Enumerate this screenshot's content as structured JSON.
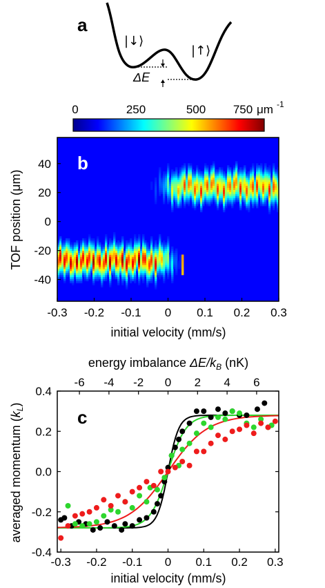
{
  "panel_a": {
    "letter": "a",
    "label_left": "|↓⟩",
    "label_right": "|↑⟩",
    "delta_label": "ΔE"
  },
  "colorbar": {
    "ticks": [
      "0",
      "250",
      "500",
      "750"
    ],
    "unit": "μm",
    "unit_exp": "-1",
    "colors": [
      "#00008f",
      "#0000ff",
      "#00ffff",
      "#ffff00",
      "#ff0000",
      "#800000"
    ]
  },
  "panel_b": {
    "letter": "b",
    "ylabel": "TOF position (μm)",
    "yticks": [
      "40",
      "20",
      "0",
      "-20",
      "-40"
    ],
    "xticks": [
      "-0.3",
      "-0.2",
      "-0.1",
      "0",
      "0.1",
      "0.2",
      "0.3"
    ],
    "xlabel": "initial velocity (mm/s)"
  },
  "panel_c": {
    "letter": "c",
    "top_label_prefix": "energy imbalance ",
    "top_label_var": "ΔE/k",
    "top_label_sub": "B",
    "top_label_suffix": " (nK)",
    "top_ticks": [
      "-6",
      "-4",
      "-2",
      "0",
      "2",
      "4",
      "6"
    ],
    "ylabel_prefix": "averaged momentum (",
    "ylabel_var": "k",
    "ylabel_sub": "L",
    "ylabel_suffix": ")",
    "yticks": [
      "0.4",
      "0.2",
      "0.0",
      "-0.2",
      "-0.4"
    ],
    "xticks": [
      "-0.3",
      "-0.2",
      "-0.1",
      "0",
      "0.1",
      "0.2",
      "0.3"
    ],
    "xlabel": "initial velocity (mm/s)"
  },
  "chart_data": [
    {
      "type": "heatmap",
      "xlabel": "initial velocity (mm/s)",
      "ylabel": "TOF position (μm)",
      "xlim": [
        -0.3,
        0.3
      ],
      "ylim": [
        -55,
        58
      ],
      "colorbar_range": [
        0,
        800
      ],
      "branches": [
        {
          "x_range": [
            -0.3,
            0.05
          ],
          "center": -27,
          "peak": 700
        },
        {
          "x_range": [
            0.0,
            0.3
          ],
          "center": 24,
          "peak": 600
        }
      ]
    },
    {
      "type": "scatter",
      "xlabel": "initial velocity (mm/s)",
      "ylabel": "averaged momentum (kL)",
      "xlim": [
        -0.31,
        0.31
      ],
      "ylim": [
        -0.4,
        0.4
      ],
      "top_axis_range": [
        -7.5,
        7.5
      ],
      "series": [
        {
          "color": "#000000",
          "x": [
            -0.3,
            -0.29,
            -0.27,
            -0.25,
            -0.23,
            -0.21,
            -0.19,
            -0.17,
            -0.15,
            -0.13,
            -0.12,
            -0.1,
            -0.08,
            -0.06,
            -0.04,
            -0.03,
            -0.02,
            -0.01,
            0.0,
            0.01,
            0.02,
            0.03,
            0.04,
            0.06,
            0.08,
            0.1,
            0.12,
            0.14,
            0.16,
            0.18,
            0.2,
            0.22,
            0.25,
            0.27
          ],
          "y": [
            -0.24,
            -0.23,
            -0.27,
            -0.25,
            -0.26,
            -0.29,
            -0.28,
            -0.25,
            -0.27,
            -0.29,
            -0.26,
            -0.27,
            -0.24,
            -0.23,
            -0.2,
            -0.16,
            -0.12,
            -0.05,
            0.02,
            0.08,
            0.12,
            0.16,
            0.2,
            0.24,
            0.3,
            0.3,
            0.27,
            0.31,
            0.29,
            0.3,
            0.28,
            0.28,
            0.31,
            0.34
          ]
        },
        {
          "color": "#2dd62d",
          "x": [
            -0.28,
            -0.26,
            -0.24,
            -0.22,
            -0.2,
            -0.18,
            -0.16,
            -0.14,
            -0.12,
            -0.1,
            -0.08,
            -0.06,
            -0.05,
            -0.03,
            -0.01,
            0.01,
            0.03,
            0.04,
            0.06,
            0.08,
            0.1,
            0.12,
            0.14,
            0.16,
            0.18,
            0.2,
            0.22,
            0.24,
            0.26,
            0.28,
            0.29
          ],
          "y": [
            -0.17,
            -0.26,
            -0.27,
            -0.26,
            -0.25,
            -0.22,
            -0.19,
            -0.2,
            -0.15,
            -0.18,
            -0.12,
            -0.15,
            -0.08,
            -0.09,
            -0.03,
            0.08,
            0.03,
            0.11,
            0.14,
            0.19,
            0.24,
            0.22,
            0.27,
            0.26,
            0.3,
            0.29,
            0.24,
            0.22,
            0.26,
            0.22,
            0.23
          ]
        },
        {
          "color": "#ee1c1c",
          "x": [
            -0.3,
            -0.28,
            -0.26,
            -0.24,
            -0.22,
            -0.2,
            -0.18,
            -0.16,
            -0.14,
            -0.12,
            -0.1,
            -0.08,
            -0.06,
            -0.04,
            -0.02,
            0.0,
            0.02,
            0.04,
            0.06,
            0.08,
            0.1,
            0.12,
            0.14,
            0.16,
            0.18,
            0.2,
            0.22,
            0.24,
            0.26,
            0.28,
            0.3
          ],
          "y": [
            -0.33,
            -0.27,
            -0.22,
            -0.21,
            -0.2,
            -0.18,
            -0.14,
            -0.17,
            -0.12,
            -0.15,
            -0.1,
            -0.08,
            -0.05,
            -0.07,
            0.0,
            0.0,
            0.02,
            0.05,
            0.03,
            0.1,
            0.1,
            0.14,
            0.18,
            0.16,
            0.2,
            0.21,
            0.23,
            0.19,
            0.24,
            0.22,
            0.25
          ]
        }
      ],
      "fits": [
        {
          "color": "#000000",
          "amplitude": 0.28,
          "scale": 0.03
        },
        {
          "color": "#2dd62d",
          "amplitude": 0.28,
          "scale": 0.05
        },
        {
          "color": "#ee1c1c",
          "amplitude": 0.28,
          "scale": 0.11
        }
      ]
    }
  ]
}
